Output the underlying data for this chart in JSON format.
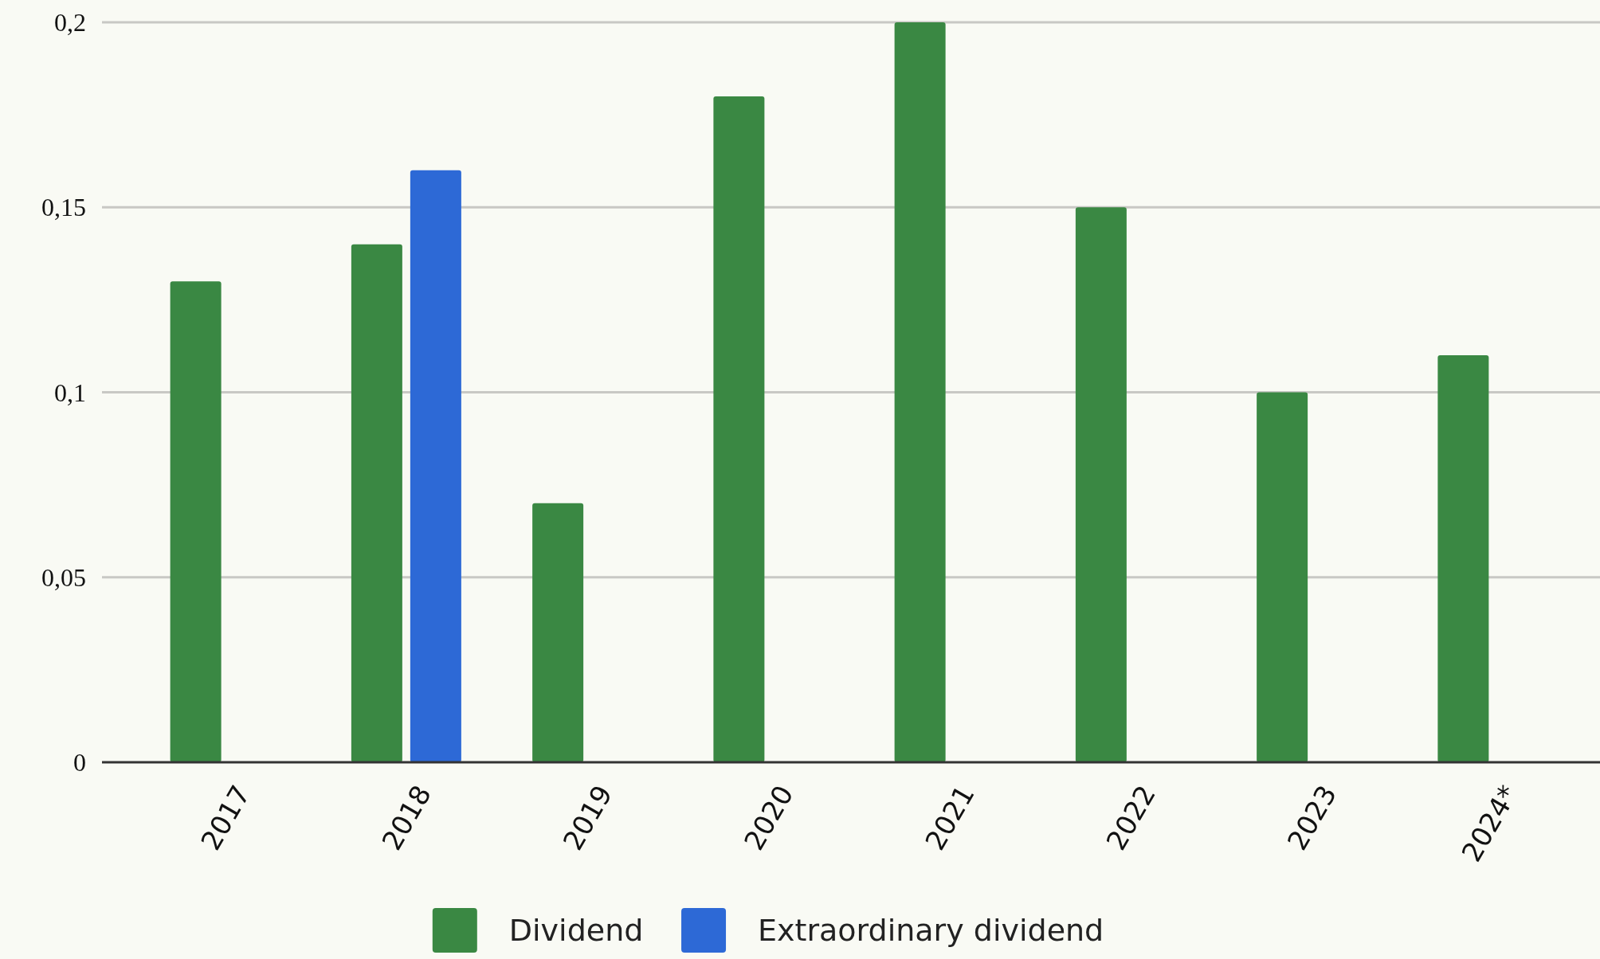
{
  "chart_data": {
    "type": "bar",
    "categories": [
      "2017",
      "2018",
      "2019",
      "2020",
      "2021",
      "2022",
      "2023",
      "2024*"
    ],
    "series": [
      {
        "name": "Dividend",
        "color": "#3a8843",
        "values": [
          0.13,
          0.14,
          0.07,
          0.18,
          0.2,
          0.15,
          0.1,
          0.11
        ]
      },
      {
        "name": "Extraordinary dividend",
        "color": "#2d69d6",
        "values": [
          null,
          0.16,
          null,
          null,
          null,
          null,
          null,
          null
        ]
      }
    ],
    "ylim": [
      0,
      0.2
    ],
    "yticks": [
      0,
      {
        "value": 0.05,
        "label": "0,05"
      },
      {
        "value": 0.1,
        "label": "0,1"
      },
      {
        "value": 0.15,
        "label": "0,15"
      },
      {
        "value": 0.2,
        "label": "0,2"
      }
    ],
    "grid": "y",
    "legend": "bottom"
  }
}
